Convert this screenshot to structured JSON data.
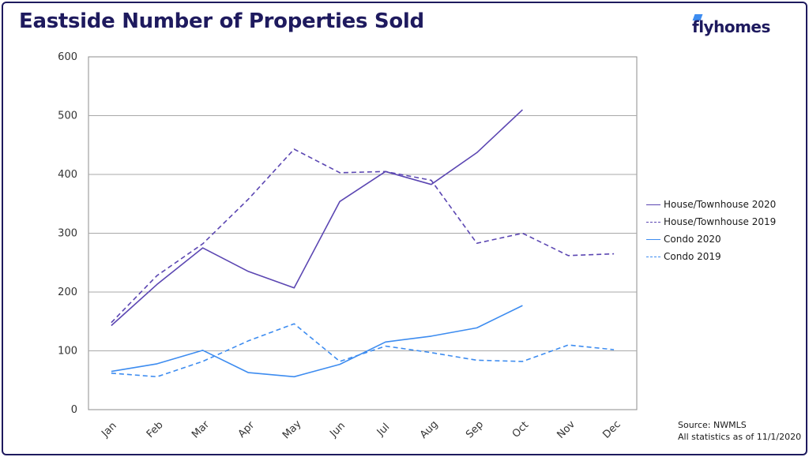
{
  "title": "Eastside Number of Properties Sold",
  "logo": {
    "text": "flyhomes",
    "icon": "flyhomes-logo-mark"
  },
  "source": {
    "line1": "Source: NWMLS",
    "line2": "All statistics as of 11/1/2020"
  },
  "colors": {
    "title": "#1e1a5e",
    "house": "#5b46b2",
    "condo": "#3d8cf0",
    "grid": "#a9a9a9"
  },
  "chart_data": {
    "type": "line",
    "title": "Eastside Number of Properties Sold",
    "categories": [
      "Jan",
      "Feb",
      "Mar",
      "Apr",
      "May",
      "Jun",
      "Jul",
      "Aug",
      "Sep",
      "Oct",
      "Nov",
      "Dec"
    ],
    "ylim": [
      0,
      600
    ],
    "yticks": [
      0,
      100,
      200,
      300,
      400,
      500,
      600
    ],
    "grid": true,
    "legend_position": "right",
    "series": [
      {
        "name": "House/Townhouse 2020",
        "values": [
          143,
          213,
          275,
          235,
          207,
          354,
          405,
          383,
          437,
          510,
          null,
          null
        ],
        "color": "#5b46b2",
        "dash": false
      },
      {
        "name": "House/Townhouse 2019",
        "values": [
          148,
          228,
          282,
          358,
          443,
          403,
          405,
          390,
          283,
          300,
          262,
          265
        ],
        "color": "#5b46b2",
        "dash": true
      },
      {
        "name": "Condo 2020",
        "values": [
          65,
          78,
          101,
          63,
          56,
          77,
          115,
          125,
          139,
          177,
          null,
          null
        ],
        "color": "#3d8cf0",
        "dash": false
      },
      {
        "name": "Condo 2019",
        "values": [
          62,
          56,
          82,
          117,
          146,
          82,
          108,
          97,
          84,
          82,
          110,
          102
        ],
        "color": "#3d8cf0",
        "dash": true
      }
    ]
  }
}
